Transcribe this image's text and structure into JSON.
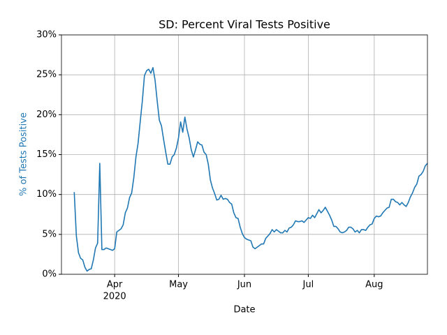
{
  "chart_data": {
    "type": "line",
    "title": "SD: Percent Viral Tests Positive",
    "xlabel": "Date",
    "ylabel": "% of Tests Positive",
    "ylabel_color": "#1f77b4",
    "grid": true,
    "x": [
      "2020-03-13",
      "2020-03-14",
      "2020-03-15",
      "2020-03-16",
      "2020-03-17",
      "2020-03-18",
      "2020-03-19",
      "2020-03-20",
      "2020-03-21",
      "2020-03-22",
      "2020-03-23",
      "2020-03-24",
      "2020-03-25",
      "2020-03-26",
      "2020-03-27",
      "2020-03-28",
      "2020-03-29",
      "2020-03-30",
      "2020-03-31",
      "2020-04-01",
      "2020-04-02",
      "2020-04-03",
      "2020-04-04",
      "2020-04-05",
      "2020-04-06",
      "2020-04-07",
      "2020-04-08",
      "2020-04-09",
      "2020-04-10",
      "2020-04-11",
      "2020-04-12",
      "2020-04-13",
      "2020-04-14",
      "2020-04-15",
      "2020-04-16",
      "2020-04-17",
      "2020-04-18",
      "2020-04-19",
      "2020-04-20",
      "2020-04-21",
      "2020-04-22",
      "2020-04-23",
      "2020-04-24",
      "2020-04-25",
      "2020-04-26",
      "2020-04-27",
      "2020-04-28",
      "2020-04-29",
      "2020-04-30",
      "2020-05-01",
      "2020-05-02",
      "2020-05-03",
      "2020-05-04",
      "2020-05-05",
      "2020-05-06",
      "2020-05-07",
      "2020-05-08",
      "2020-05-09",
      "2020-05-10",
      "2020-05-11",
      "2020-05-12",
      "2020-05-13",
      "2020-05-14",
      "2020-05-15",
      "2020-05-16",
      "2020-05-17",
      "2020-05-18",
      "2020-05-19",
      "2020-05-20",
      "2020-05-21",
      "2020-05-22",
      "2020-05-23",
      "2020-05-24",
      "2020-05-25",
      "2020-05-26",
      "2020-05-27",
      "2020-05-28",
      "2020-05-29",
      "2020-05-30",
      "2020-05-31",
      "2020-06-01",
      "2020-06-02",
      "2020-06-03",
      "2020-06-04",
      "2020-06-05",
      "2020-06-06",
      "2020-06-07",
      "2020-06-08",
      "2020-06-09",
      "2020-06-10",
      "2020-06-11",
      "2020-06-12",
      "2020-06-13",
      "2020-06-14",
      "2020-06-15",
      "2020-06-16",
      "2020-06-17",
      "2020-06-18",
      "2020-06-19",
      "2020-06-20",
      "2020-06-21",
      "2020-06-22",
      "2020-06-23",
      "2020-06-24",
      "2020-06-25",
      "2020-06-26",
      "2020-06-27",
      "2020-06-28",
      "2020-06-29",
      "2020-06-30",
      "2020-07-01",
      "2020-07-02",
      "2020-07-03",
      "2020-07-04",
      "2020-07-05",
      "2020-07-06",
      "2020-07-07",
      "2020-07-08",
      "2020-07-09",
      "2020-07-10",
      "2020-07-11",
      "2020-07-12",
      "2020-07-13",
      "2020-07-14",
      "2020-07-15",
      "2020-07-16",
      "2020-07-17",
      "2020-07-18",
      "2020-07-19",
      "2020-07-20",
      "2020-07-21",
      "2020-07-22",
      "2020-07-23",
      "2020-07-24",
      "2020-07-25",
      "2020-07-26",
      "2020-07-27",
      "2020-07-28",
      "2020-07-29",
      "2020-07-30",
      "2020-07-31",
      "2020-08-01",
      "2020-08-02",
      "2020-08-03",
      "2020-08-04",
      "2020-08-05",
      "2020-08-06",
      "2020-08-07",
      "2020-08-08",
      "2020-08-09",
      "2020-08-10",
      "2020-08-11",
      "2020-08-12",
      "2020-08-13",
      "2020-08-14",
      "2020-08-15",
      "2020-08-16",
      "2020-08-17",
      "2020-08-18",
      "2020-08-19",
      "2020-08-20",
      "2020-08-21",
      "2020-08-22",
      "2020-08-23",
      "2020-08-24",
      "2020-08-25",
      "2020-08-26"
    ],
    "series": [
      {
        "name": "% of Tests Positive",
        "color": "#1f77b4",
        "values": [
          10.3,
          4.8,
          2.7,
          2.0,
          1.8,
          0.9,
          0.4,
          0.6,
          0.7,
          1.8,
          3.3,
          3.9,
          13.9,
          3.1,
          3.1,
          3.3,
          3.2,
          3.1,
          3.0,
          3.2,
          5.3,
          5.5,
          5.7,
          6.2,
          7.7,
          8.3,
          9.6,
          10.2,
          12.1,
          14.7,
          16.4,
          19.1,
          21.7,
          24.9,
          25.5,
          25.7,
          25.2,
          25.9,
          24.3,
          21.7,
          19.3,
          18.6,
          16.9,
          15.3,
          13.8,
          13.8,
          14.7,
          15.0,
          15.8,
          17.1,
          19.1,
          17.8,
          19.7,
          18.2,
          17.1,
          15.6,
          14.7,
          15.6,
          16.6,
          16.3,
          16.2,
          15.3,
          15.0,
          13.8,
          11.8,
          10.8,
          10.1,
          9.3,
          9.4,
          9.9,
          9.4,
          9.5,
          9.4,
          9.0,
          8.8,
          7.7,
          7.1,
          7.0,
          5.9,
          5.1,
          4.6,
          4.4,
          4.3,
          4.2,
          3.4,
          3.2,
          3.4,
          3.6,
          3.8,
          3.8,
          4.5,
          4.8,
          5.1,
          5.6,
          5.3,
          5.6,
          5.4,
          5.2,
          5.2,
          5.5,
          5.3,
          5.8,
          5.9,
          6.2,
          6.7,
          6.6,
          6.6,
          6.7,
          6.5,
          6.8,
          7.1,
          7.0,
          7.4,
          7.1,
          7.6,
          8.1,
          7.7,
          8.0,
          8.4,
          7.9,
          7.4,
          6.8,
          6.0,
          6.0,
          5.7,
          5.3,
          5.2,
          5.3,
          5.5,
          5.9,
          5.9,
          5.7,
          5.3,
          5.5,
          5.2,
          5.6,
          5.6,
          5.5,
          5.9,
          6.2,
          6.3,
          7.0,
          7.3,
          7.2,
          7.3,
          7.7,
          8.0,
          8.3,
          8.4,
          9.4,
          9.4,
          9.1,
          9.0,
          8.7,
          9.0,
          8.7,
          8.5,
          9.0,
          9.7,
          10.2,
          10.9,
          11.3,
          12.3,
          12.5,
          12.9,
          13.6,
          13.9
        ]
      }
    ],
    "xlim": [
      "2020-03-07",
      "2020-08-26"
    ],
    "xticks": [
      {
        "value": "2020-04-01",
        "label": "Apr"
      },
      {
        "value": "2020-05-01",
        "label": "May"
      },
      {
        "value": "2020-06-01",
        "label": "Jun"
      },
      {
        "value": "2020-07-01",
        "label": "Jul"
      },
      {
        "value": "2020-08-01",
        "label": "Aug"
      }
    ],
    "xtick_sublabel": "2020",
    "ylim": [
      0,
      30
    ],
    "yticks": [
      {
        "value": 0,
        "label": "0%"
      },
      {
        "value": 5,
        "label": "5%"
      },
      {
        "value": 10,
        "label": "10%"
      },
      {
        "value": 15,
        "label": "15%"
      },
      {
        "value": 20,
        "label": "20%"
      },
      {
        "value": 25,
        "label": "25%"
      },
      {
        "value": 30,
        "label": "30%"
      }
    ]
  }
}
